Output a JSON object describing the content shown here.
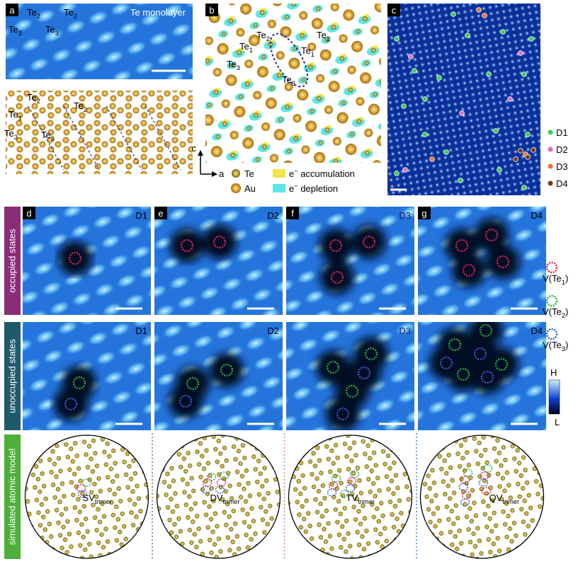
{
  "panel_a": {
    "label": "a",
    "title": "Te monolayer",
    "stm_labels": [
      {
        "base": "Te",
        "sub": "2"
      },
      {
        "base": "Te",
        "sub": "2"
      },
      {
        "base": "Te",
        "sub": "3"
      },
      {
        "base": "Te",
        "sub": "3"
      }
    ],
    "model_labels": [
      {
        "base": "Te",
        "sub": "2"
      },
      {
        "base": "Te",
        "sub": "2"
      },
      {
        "base": "Te",
        "sub": "1"
      },
      {
        "base": "Te",
        "sub": "3"
      },
      {
        "base": "Te",
        "sub": "3"
      }
    ]
  },
  "panel_b": {
    "label": "b",
    "labels": [
      {
        "base": "Te",
        "sub": "2"
      },
      {
        "base": "Te",
        "sub": "2"
      },
      {
        "base": "Te",
        "sub": "1"
      },
      {
        "base": "Te",
        "sub": "1"
      },
      {
        "base": "Te",
        "sub": "3"
      },
      {
        "base": "Te",
        "sub": "3"
      }
    ],
    "axis_labels": [
      "c",
      "a"
    ],
    "legend": [
      {
        "base": "Te"
      },
      {
        "base": "Au"
      },
      {
        "base": "e",
        "sup": "−",
        "rest": " accumulation"
      },
      {
        "base": "e",
        "sup": "−",
        "rest": " depletion"
      }
    ]
  },
  "panel_c": {
    "label": "c",
    "legend": [
      {
        "name": "D1",
        "color": "#3ccf4a"
      },
      {
        "name": "D2",
        "color": "#e070c0"
      },
      {
        "name": "D3",
        "color": "#f07030"
      },
      {
        "name": "D4",
        "color": "#7a3a10"
      }
    ]
  },
  "row_labels": [
    "occupied states",
    "unoccupied states",
    "simulated atomic model"
  ],
  "columns": [
    {
      "label": "d",
      "defect": "D1",
      "model": {
        "base": "SV",
        "sub": "trimer"
      }
    },
    {
      "label": "e",
      "defect": "D2",
      "model": {
        "base": "DV",
        "sub": "trimer"
      }
    },
    {
      "label": "f",
      "defect": "D3",
      "model": {
        "base": "TV",
        "sub": "trimer"
      }
    },
    {
      "label": "g",
      "defect": "D4",
      "model": {
        "base": "QV",
        "sub": "trimer"
      }
    }
  ],
  "vacancy_legend": [
    {
      "base": "V(Te",
      "sub": "1",
      "rest": ")",
      "color": "#e0205a"
    },
    {
      "base": "V(Te",
      "sub": "2",
      "rest": ")",
      "color": "#22b04a"
    },
    {
      "base": "V(Te",
      "sub": "3",
      "rest": ")",
      "color": "#3a5ad0"
    }
  ],
  "colorbar": {
    "high": "H",
    "low": "L"
  }
}
